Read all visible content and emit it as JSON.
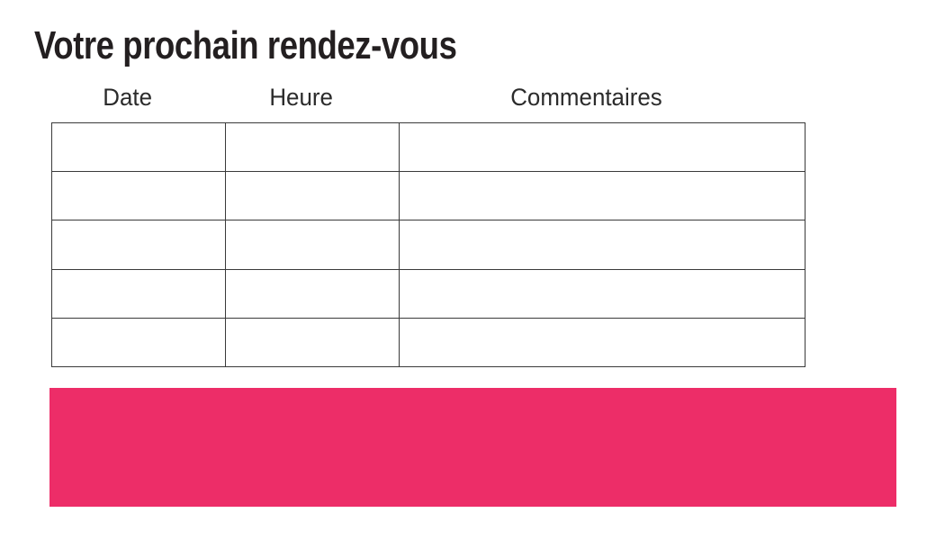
{
  "page": {
    "title": "Votre prochain rendez-vous"
  },
  "table": {
    "headers": [
      "Date",
      "Heure",
      "Commentaires"
    ],
    "rows": [
      [
        "",
        "",
        ""
      ],
      [
        "",
        "",
        ""
      ],
      [
        "",
        "",
        ""
      ],
      [
        "",
        "",
        ""
      ],
      [
        "",
        "",
        ""
      ]
    ]
  },
  "colors": {
    "accent_pink": "#ED2D68",
    "text_black": "#231F20",
    "table_border": "#3A3A3A"
  }
}
